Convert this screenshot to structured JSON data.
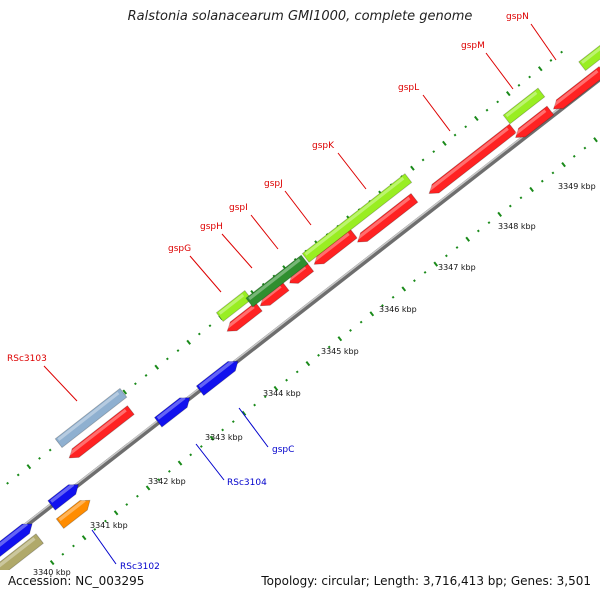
{
  "header": {
    "title": "Ralstonia solanacearum GMI1000, complete genome"
  },
  "footer": {
    "accession": "Accession: NC_003295",
    "summary": "Topology: circular; Length: 3,716,413 bp; Genes: 3,501"
  },
  "colors": {
    "backbone": "#9a9a9a",
    "tick": "#1a8a1a",
    "reverse_cds": "#ff2222",
    "gsp_cluster": "#99ee22",
    "gsp_dark": "#2f8f2f",
    "forward_cds": "#1111ee",
    "rsc3102": "#ff8c00",
    "rsc3103": "#8fb0d0",
    "lower_left_feature": "#b0a96a",
    "label_red": "#dd0000",
    "label_blue": "#0000cc"
  },
  "scale_labels": [
    {
      "text": "3340 kbp"
    },
    {
      "text": "3341 kbp"
    },
    {
      "text": "3342 kbp"
    },
    {
      "text": "3343 kbp"
    },
    {
      "text": "3344 kbp"
    },
    {
      "text": "3345 kbp"
    },
    {
      "text": "3346 kbp"
    },
    {
      "text": "3347 kbp"
    },
    {
      "text": "3348 kbp"
    },
    {
      "text": "3349 kbp"
    }
  ],
  "gene_labels": [
    {
      "name": "RSc3103",
      "color_key": "label_red"
    },
    {
      "name": "gspG",
      "color_key": "label_red"
    },
    {
      "name": "gspH",
      "color_key": "label_red"
    },
    {
      "name": "gspI",
      "color_key": "label_red"
    },
    {
      "name": "gspJ",
      "color_key": "label_red"
    },
    {
      "name": "gspK",
      "color_key": "label_red"
    },
    {
      "name": "gspL",
      "color_key": "label_red"
    },
    {
      "name": "gspM",
      "color_key": "label_red"
    },
    {
      "name": "gspN",
      "color_key": "label_red"
    },
    {
      "name": "gspC",
      "color_key": "label_blue"
    },
    {
      "name": "RSc3104",
      "color_key": "label_blue"
    },
    {
      "name": "RSc3102",
      "color_key": "label_blue"
    }
  ]
}
